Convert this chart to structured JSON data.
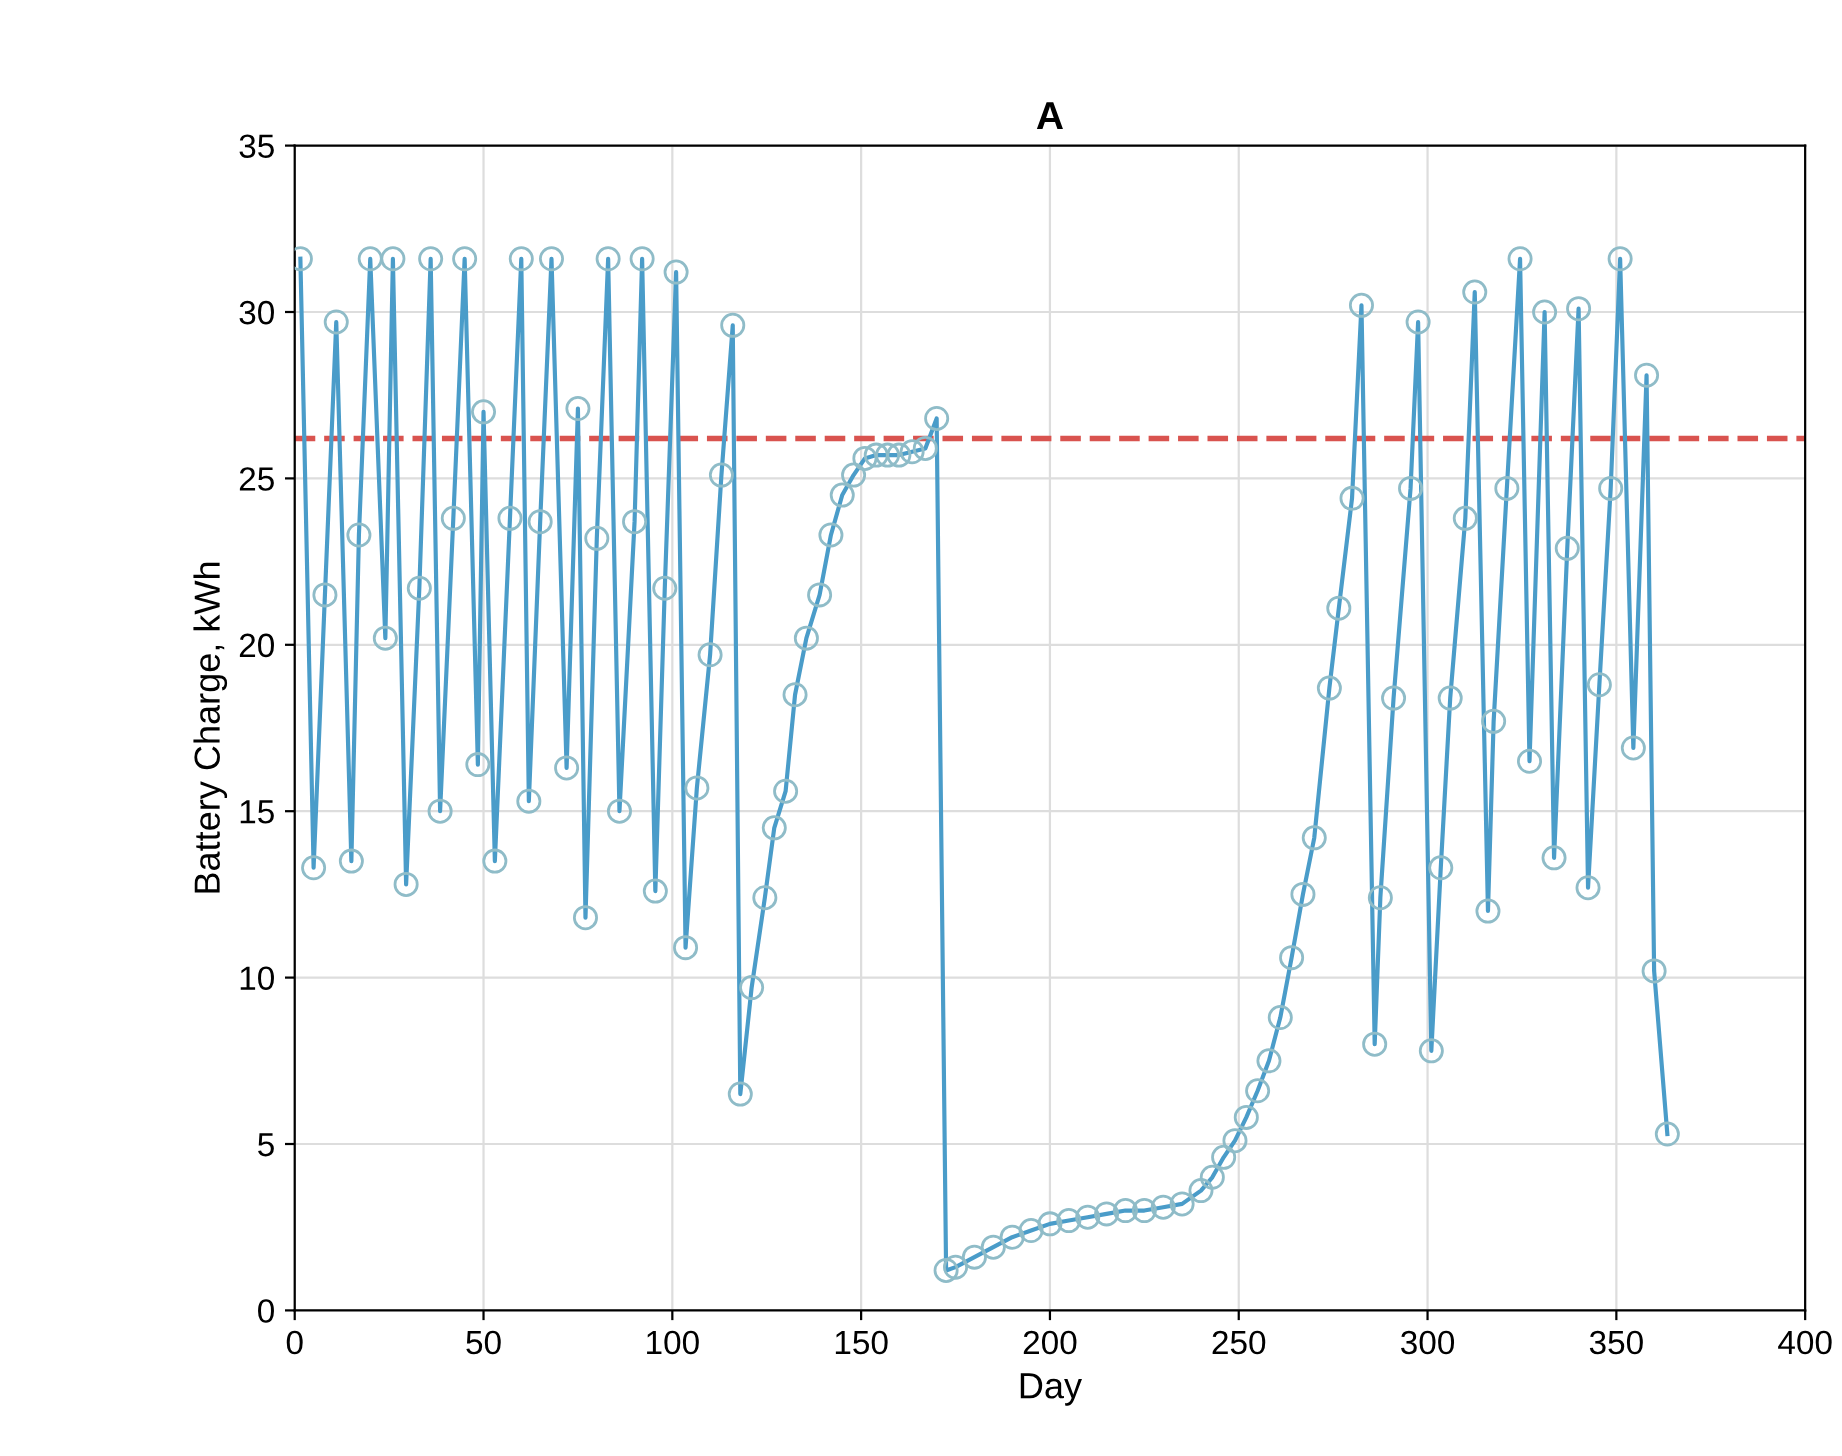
{
  "chart_data": {
    "type": "line",
    "title": "A",
    "xlabel": "Day",
    "ylabel": "Battery Charge, kWh",
    "xlim": [
      0,
      400
    ],
    "xticks": [
      0,
      50,
      100,
      150,
      200,
      250,
      300,
      350,
      400
    ],
    "ylim": [
      0,
      35
    ],
    "yticks": [
      0,
      5,
      10,
      15,
      20,
      25,
      30,
      35
    ],
    "grid": true,
    "marker": "circle",
    "line_style": "solid",
    "ref_lines": [
      {
        "axis": "y",
        "value": 26.2,
        "color": "#d9534f",
        "line_style": "dashed"
      }
    ],
    "series": [
      {
        "color": "#4a9cc9",
        "x": [
          1.5,
          5,
          8,
          11,
          15,
          17,
          20,
          24,
          26,
          29.5,
          33,
          36,
          38.5,
          42,
          45,
          48.5,
          50,
          53,
          57,
          60,
          62,
          65,
          68,
          72,
          75,
          77,
          80,
          83,
          86,
          90,
          92,
          95.5,
          98,
          101,
          103.5,
          106.5,
          110,
          113,
          116,
          118,
          121,
          124.5,
          127,
          130,
          132.5,
          135.5,
          139,
          142,
          145,
          148,
          151,
          154,
          157,
          160,
          163.5,
          167,
          170,
          172.5,
          175,
          180,
          185,
          190,
          195,
          200,
          205,
          210,
          215,
          220,
          225,
          230,
          235,
          240,
          243,
          246,
          249,
          252,
          255,
          258,
          261,
          264,
          267,
          270,
          274,
          276.5,
          280,
          282.5,
          286,
          287.5,
          291,
          295.5,
          297.5,
          301,
          303.5,
          306,
          310,
          312.5,
          316,
          317.5,
          321,
          324.5,
          327,
          331,
          333.5,
          337,
          340,
          342.5,
          345.5,
          348.5,
          351,
          354.5,
          358,
          360,
          363.5
        ],
        "values": [
          31.6,
          13.3,
          21.5,
          29.7,
          13.5,
          23.3,
          31.6,
          20.2,
          31.6,
          12.8,
          21.7,
          31.6,
          15,
          23.8,
          31.6,
          16.4,
          27,
          13.5,
          23.8,
          31.6,
          15.3,
          23.7,
          31.6,
          16.3,
          27.1,
          11.8,
          23.2,
          31.6,
          15,
          23.7,
          31.6,
          12.6,
          21.7,
          31.2,
          10.9,
          15.7,
          19.7,
          25.1,
          29.6,
          6.5,
          9.7,
          12.4,
          14.5,
          15.6,
          18.5,
          20.2,
          21.5,
          23.3,
          24.5,
          25.1,
          25.6,
          25.7,
          25.7,
          25.7,
          25.8,
          25.9,
          26.8,
          1.2,
          1.3,
          1.6,
          1.9,
          2.2,
          2.4,
          2.6,
          2.7,
          2.8,
          2.9,
          3.0,
          3.0,
          3.1,
          3.2,
          3.6,
          4.0,
          4.6,
          5.1,
          5.8,
          6.6,
          7.5,
          8.8,
          10.6,
          12.5,
          14.2,
          18.7,
          21.1,
          24.4,
          30.2,
          8.0,
          12.4,
          18.4,
          24.7,
          29.7,
          7.8,
          13.3,
          18.4,
          23.8,
          30.6,
          12.0,
          17.7,
          24.7,
          31.6,
          16.5,
          30.0,
          13.6,
          22.9,
          30.1,
          12.7,
          18.8,
          24.7,
          31.6,
          16.9,
          28.1,
          10.2,
          5.3
        ]
      }
    ]
  }
}
